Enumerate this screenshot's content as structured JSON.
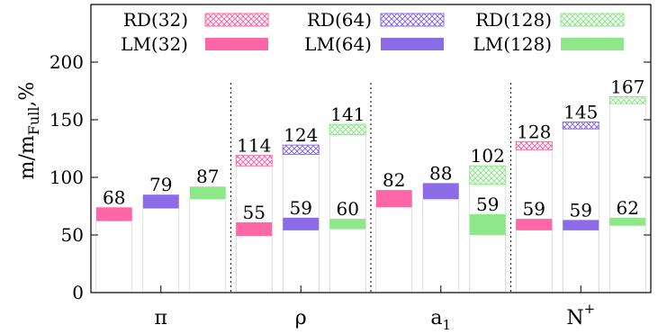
{
  "chart_data": {
    "type": "bar",
    "subtype": "floating-range",
    "categories": [
      "π",
      "ρ",
      "a",
      "N"
    ],
    "category_subscripts": [
      "",
      "",
      "1",
      ""
    ],
    "category_superscripts": [
      "",
      "",
      "",
      "+"
    ],
    "ylabel": "m/m",
    "ylabel_subscript": "Full",
    "ylabel_suffix": ",%",
    "ylim": [
      0,
      250
    ],
    "yticks": [
      0,
      50,
      100,
      150,
      200
    ],
    "grid": false,
    "legend_position": "top",
    "legend_rows": [
      [
        "RD(32)",
        "RD(64)",
        "RD(128)"
      ],
      [
        "LM(32)",
        "LM(64)",
        "LM(128)"
      ]
    ],
    "series": [
      {
        "name": "LM(32)",
        "method": "LM",
        "group": 32,
        "color": "#ff66a6",
        "pattern": "solid",
        "values": [
          68,
          55,
          82,
          59
        ],
        "ranges": [
          [
            62,
            74
          ],
          [
            49,
            61
          ],
          [
            74,
            89
          ],
          [
            54,
            64
          ]
        ],
        "labels": [
          "68",
          "55",
          "82",
          "59"
        ]
      },
      {
        "name": "LM(64)",
        "method": "LM",
        "group": 64,
        "color": "#8c6be6",
        "pattern": "solid",
        "values": [
          79,
          59,
          88,
          59
        ],
        "ranges": [
          [
            73,
            85
          ],
          [
            54,
            65
          ],
          [
            81,
            95
          ],
          [
            54,
            63
          ]
        ],
        "labels": [
          "79",
          "59",
          "88",
          "59"
        ]
      },
      {
        "name": "LM(128)",
        "method": "LM",
        "group": 128,
        "color": "#8ee88a",
        "pattern": "solid",
        "values": [
          87,
          60,
          59,
          62
        ],
        "ranges": [
          [
            81,
            92
          ],
          [
            55,
            64
          ],
          [
            50,
            68
          ],
          [
            58,
            65
          ]
        ],
        "labels": [
          "87",
          "60",
          "59",
          "62"
        ]
      },
      {
        "name": "RD(32)",
        "method": "RD",
        "group": 32,
        "color": "#ff66a6",
        "pattern": "hatch",
        "values": [
          null,
          114,
          null,
          128
        ],
        "ranges": [
          null,
          [
            110,
            119
          ],
          null,
          [
            124,
            131
          ]
        ],
        "labels": [
          "",
          "114",
          "",
          "128"
        ]
      },
      {
        "name": "RD(64)",
        "method": "RD",
        "group": 64,
        "color": "#8c6be6",
        "pattern": "hatch",
        "values": [
          null,
          124,
          null,
          145
        ],
        "ranges": [
          null,
          [
            120,
            128
          ],
          null,
          [
            142,
            148
          ]
        ],
        "labels": [
          "",
          "124",
          "",
          "145"
        ]
      },
      {
        "name": "RD(128)",
        "method": "RD",
        "group": 128,
        "color": "#8ee88a",
        "pattern": "hatch",
        "values": [
          null,
          141,
          102,
          167
        ],
        "ranges": [
          null,
          [
            137,
            146
          ],
          [
            94,
            110
          ],
          [
            164,
            170
          ]
        ],
        "labels": [
          "",
          "141",
          "102",
          "167"
        ]
      }
    ]
  }
}
